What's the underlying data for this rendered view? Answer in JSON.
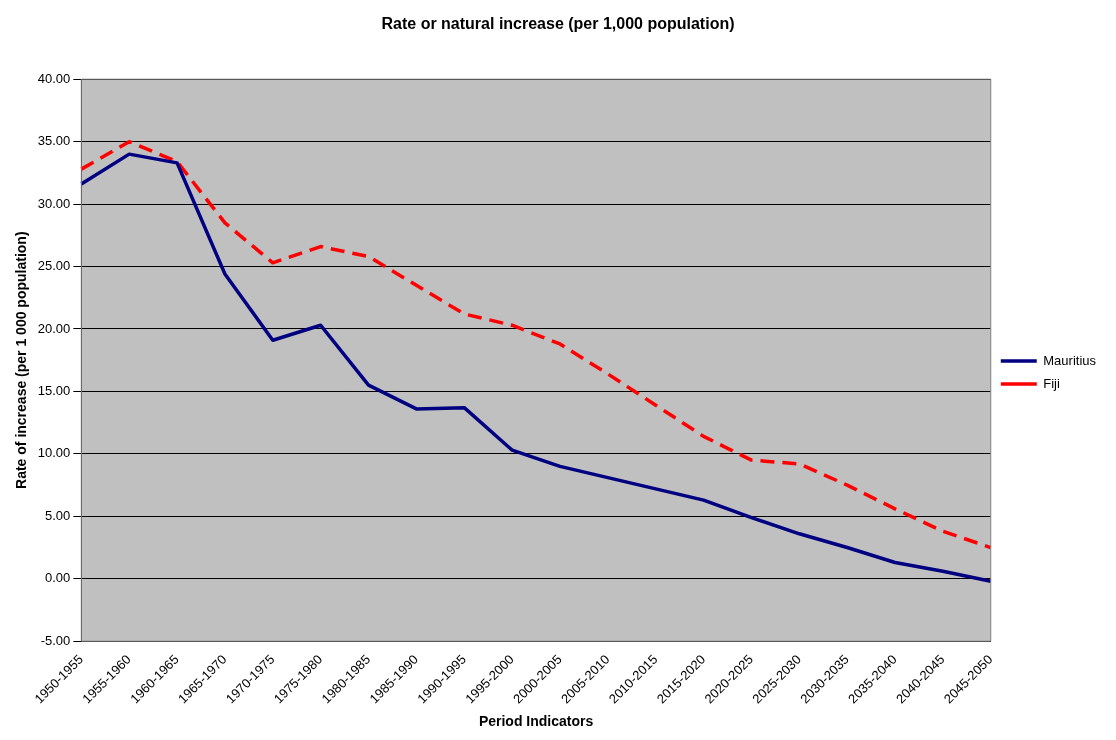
{
  "chart_data": {
    "type": "line",
    "title": "Rate or natural increase (per 1,000 population)",
    "xlabel": "Period Indicators",
    "ylabel": "Rate of increase (per 1 000 population)",
    "categories": [
      "1950-1955",
      "1955-1960",
      "1960-1965",
      "1965-1970",
      "1970-1975",
      "1975-1980",
      "1980-1985",
      "1985-1990",
      "1990-1995",
      "1995-2000",
      "2000-2005",
      "2005-2010",
      "2010-2015",
      "2015-2020",
      "2020-2025",
      "2025-2030",
      "2030-2035",
      "2035-2040",
      "2040-2045",
      "2045-2050"
    ],
    "series": [
      {
        "name": "Mauritius",
        "color": "#000080",
        "line_style": "solid",
        "values": [
          31.6,
          34.0,
          33.3,
          24.4,
          19.1,
          20.3,
          15.5,
          13.6,
          13.7,
          10.3,
          9.0,
          8.1,
          7.2,
          6.3,
          4.9,
          3.6,
          2.5,
          1.3,
          0.6,
          -0.2
        ]
      },
      {
        "name": "Fiji",
        "color": "#ff0000",
        "line_style": "dashed",
        "values": [
          32.8,
          35.0,
          33.4,
          28.5,
          25.3,
          26.6,
          25.8,
          23.5,
          21.2,
          20.3,
          18.8,
          16.4,
          13.9,
          11.4,
          9.5,
          9.2,
          7.5,
          5.6,
          3.8,
          2.5
        ]
      }
    ],
    "ylim": [
      -5,
      40
    ],
    "yticks": [
      {
        "value": -5,
        "label": "-5.00"
      },
      {
        "value": 0,
        "label": "0.00"
      },
      {
        "value": 5,
        "label": "5.00"
      },
      {
        "value": 10,
        "label": "10.00"
      },
      {
        "value": 15,
        "label": "15.00"
      },
      {
        "value": 20,
        "label": "20.00"
      },
      {
        "value": 25,
        "label": "25.00"
      },
      {
        "value": 30,
        "label": "30.00"
      },
      {
        "value": 35,
        "label": "35.00"
      },
      {
        "value": 40,
        "label": "40.00"
      }
    ],
    "grid": "y",
    "legend": "right",
    "marker": "none"
  }
}
